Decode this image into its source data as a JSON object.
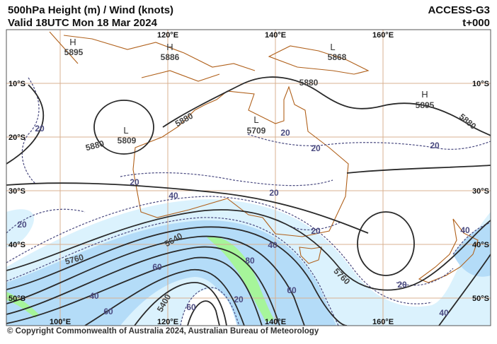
{
  "header": {
    "title": "500hPa Height (m) / Wind (knots)",
    "valid": "Valid 18UTC Mon 18 Mar 2024",
    "model": "ACCESS-G3",
    "lead": "t+000"
  },
  "footer": {
    "copyright": "© Copyright Commonwealth of Australia 2024, Australian Bureau of Meteorology"
  },
  "colors": {
    "wind_20_40": "#dbf2fd",
    "wind_40_60": "#b4dcf8",
    "wind_80_plus": "#a6f59a",
    "height_contour": "#2a2a2a",
    "wind_contour": "#4a4a80",
    "coastline": "#b0601a"
  },
  "grid": {
    "lon_top": [
      "120°E",
      "140°E",
      "160°E"
    ],
    "lon_bottom": [
      "100°E",
      "120°E",
      "140°E",
      "160°E"
    ],
    "lat_left": [
      "10°S",
      "20°S",
      "30°S",
      "40°S",
      "50°S"
    ],
    "lat_right": [
      "10°S",
      "30°S",
      "40°S",
      "50°S"
    ]
  },
  "centers": [
    {
      "type": "H",
      "value": "5895"
    },
    {
      "type": "H",
      "value": "5886"
    },
    {
      "type": "L",
      "value": "5868"
    },
    {
      "type": "H",
      "value": "5895"
    },
    {
      "type": "L",
      "value": "5809"
    },
    {
      "type": "L",
      "value": "5709"
    }
  ],
  "height_labels": [
    "5880",
    "5880",
    "5880",
    "5880",
    "5760",
    "5640",
    "5400",
    "5760"
  ],
  "wind_labels": [
    "20",
    "20",
    "20",
    "20",
    "20",
    "20",
    "40",
    "20",
    "20",
    "40",
    "40",
    "60",
    "80",
    "60",
    "40",
    "60",
    "60",
    "20",
    "20",
    "40"
  ]
}
